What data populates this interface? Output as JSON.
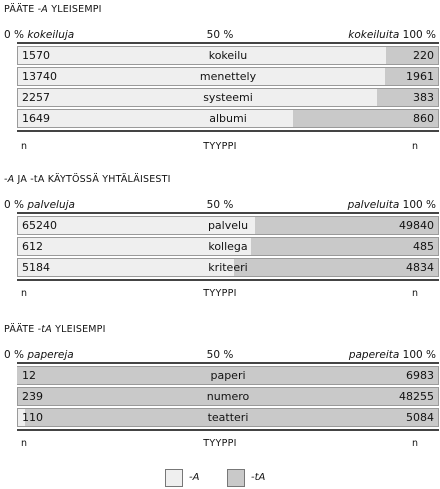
{
  "chart_data": {
    "type": "bar",
    "stacked": "100%",
    "legend": [
      {
        "label": "-A",
        "color": "#efefef"
      },
      {
        "label": "-tA",
        "color": "#c9c9c9"
      }
    ],
    "panels": [
      {
        "title_prefix": "PÄÄTE ",
        "title_em": "-A",
        "title_suffix": " YLEISEMPI",
        "scale_left_pct": "0 %",
        "scale_left_word": "kokeiluja",
        "scale_mid": "50 %",
        "scale_right_word": "kokeiluita",
        "scale_right_pct": "100 %",
        "footer_left": "n",
        "footer_mid": "TYYPPI",
        "footer_right": "n",
        "rows": [
          {
            "word": "kokeilu",
            "a": 1570,
            "ta": 220
          },
          {
            "word": "menettely",
            "a": 13740,
            "ta": 1961
          },
          {
            "word": "systeemi",
            "a": 2257,
            "ta": 383
          },
          {
            "word": "albumi",
            "a": 1649,
            "ta": 860
          }
        ]
      },
      {
        "title_prefix": "",
        "title_em": "-A",
        "title_suffix": " JA -tA KÄYTÖSSÄ YHTÄLÄISESTI",
        "scale_left_pct": "0 %",
        "scale_left_word": "palveluja",
        "scale_mid": "50 %",
        "scale_right_word": "palveluita",
        "scale_right_pct": "100 %",
        "footer_left": "n",
        "footer_mid": "TYYPPI",
        "footer_right": "n",
        "rows": [
          {
            "word": "palvelu",
            "a": 65240,
            "ta": 49840
          },
          {
            "word": "kollega",
            "a": 612,
            "ta": 485
          },
          {
            "word": "kriteeri",
            "a": 5184,
            "ta": 4834
          }
        ]
      },
      {
        "title_prefix": "PÄÄTE ",
        "title_em": "-tA",
        "title_suffix": " YLEISEMPI",
        "scale_left_pct": "0 %",
        "scale_left_word": "papereja",
        "scale_mid": "50 %",
        "scale_right_word": "papereita",
        "scale_right_pct": "100 %",
        "footer_left": "n",
        "footer_mid": "TYYPPI",
        "footer_right": "n",
        "rows": [
          {
            "word": "paperi",
            "a": 12,
            "ta": 6983
          },
          {
            "word": "numero",
            "a": 239,
            "ta": 48255
          },
          {
            "word": "teatteri",
            "a": 110,
            "ta": 5084
          }
        ]
      }
    ]
  }
}
